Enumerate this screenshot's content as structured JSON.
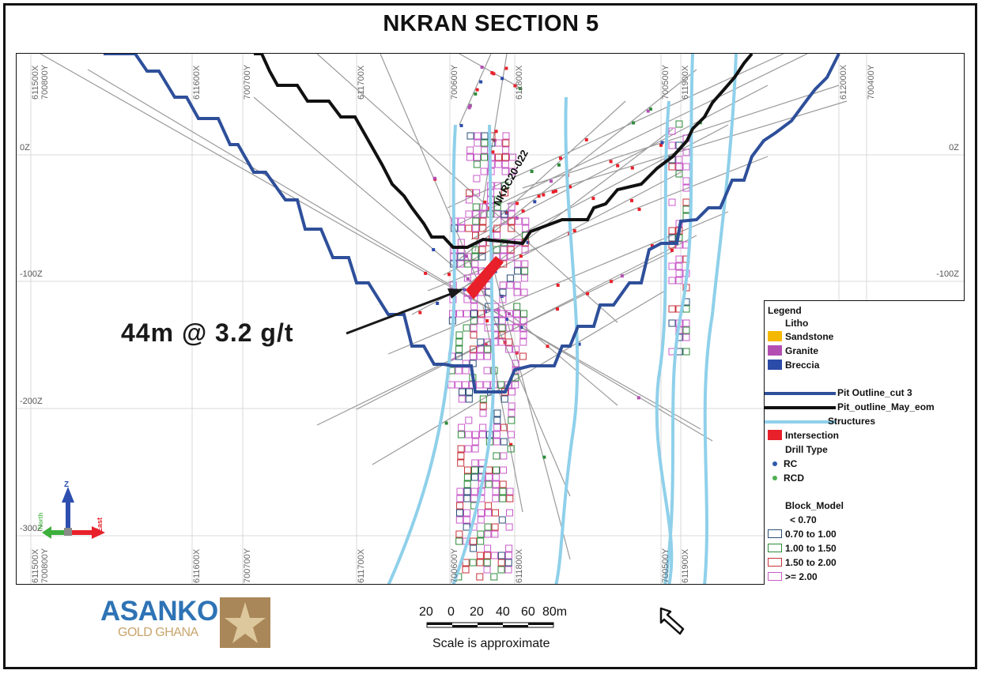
{
  "title": "NKRAN SECTION 5",
  "callout": {
    "text": "44m @ 3.2 g/t"
  },
  "drillhole_label": "NKRC20-022",
  "grid": {
    "top_labels": [
      "611500X",
      "700800Y",
      "611600X",
      "700700Y",
      "611700X",
      "700600Y",
      "611800X",
      "700500Y",
      "611900X",
      "612000X",
      "700400Y"
    ],
    "bottom_labels": [
      "611500X",
      "700800Y",
      "611600X",
      "700700Y",
      "611700X",
      "700600Y",
      "611800X",
      "700500Y",
      "611900X"
    ],
    "left_elevations": [
      "0Z",
      "-100Z",
      "-200Z",
      "-300Z"
    ],
    "right_elevations": [
      "0Z",
      "-100Z"
    ]
  },
  "axes_triad": {
    "z_label": "Z",
    "east_label": "East",
    "north_label": "North"
  },
  "legend": {
    "heading": "Legend",
    "litho_heading": "Litho",
    "litho": [
      {
        "label": "Sandstone",
        "color": "#f5b800"
      },
      {
        "label": "Granite",
        "color": "#b34fb3"
      },
      {
        "label": "Breccia",
        "color": "#2b4ba8"
      }
    ],
    "lines": [
      {
        "label": "Pit Outline_cut 3",
        "color": "#2e4f9a"
      },
      {
        "label": "Pit_outline_May_eom",
        "color": "#111111"
      },
      {
        "label": "Structures",
        "color": "#8fd0ea"
      }
    ],
    "intersection": {
      "label": "Intersection",
      "color": "#e8202a"
    },
    "drill_type_heading": "Drill Type",
    "drill_types": [
      {
        "label": "RC",
        "color": "#2b5aa8"
      },
      {
        "label": "RCD",
        "color": "#4caf50"
      }
    ],
    "block_model_heading": "Block_Model",
    "block_model": [
      {
        "label": "< 0.70",
        "color": ""
      },
      {
        "label": "0.70 to 1.00",
        "color": "#2a4e78"
      },
      {
        "label": "1.00 to 1.50",
        "color": "#2e8b3a"
      },
      {
        "label": "1.50 to 2.00",
        "color": "#c8323a"
      },
      {
        "label": ">= 2.00",
        "color": "#c85ac8"
      }
    ]
  },
  "logo": {
    "word": "ASANKO",
    "sub": "GOLD GHANA"
  },
  "scale": {
    "labels": [
      "20",
      "0",
      "20",
      "40",
      "60",
      "80m"
    ],
    "note": "Scale is approximate"
  }
}
